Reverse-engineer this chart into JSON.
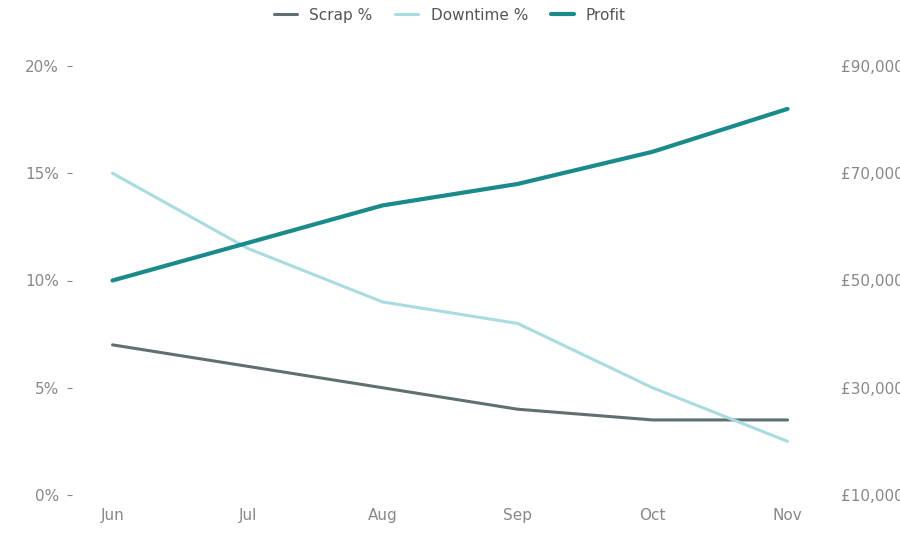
{
  "months": [
    "Jun",
    "Jul",
    "Aug",
    "Sep",
    "Oct",
    "Nov"
  ],
  "scrap_pct": [
    0.07,
    0.06,
    0.05,
    0.04,
    0.035,
    0.035
  ],
  "downtime_pct": [
    0.15,
    0.115,
    0.09,
    0.08,
    0.05,
    0.025
  ],
  "profit": [
    50000,
    57000,
    64000,
    68000,
    74000,
    82000
  ],
  "scrap_color": "#607070",
  "downtime_color": "#a8dce0",
  "profit_color": "#1a8a8a",
  "left_ylim": [
    0.0,
    0.2
  ],
  "right_ylim": [
    10000,
    90000
  ],
  "left_yticks": [
    0.0,
    0.05,
    0.1,
    0.15,
    0.2
  ],
  "right_yticks": [
    10000,
    30000,
    50000,
    70000,
    90000
  ],
  "legend_labels": [
    "Scrap %",
    "Downtime %",
    "Profit"
  ],
  "background_color": "#ffffff",
  "line_width": 2.2,
  "figsize": [
    9.0,
    5.5
  ],
  "dpi": 100
}
